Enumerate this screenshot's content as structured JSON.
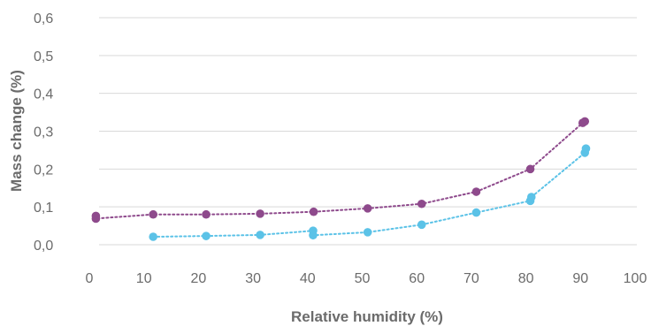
{
  "chart_data": {
    "type": "scatter",
    "title": "",
    "xlabel": "Relative humidity (%)",
    "ylabel": "Mass change (%)",
    "xlim": [
      0,
      100
    ],
    "ylim": [
      0,
      0.6
    ],
    "x_ticks": [
      "0",
      "10",
      "20",
      "30",
      "40",
      "50",
      "60",
      "70",
      "80",
      "90",
      "100"
    ],
    "y_ticks": [
      "0,0",
      "0,1",
      "0,2",
      "0,3",
      "0,4",
      "0,5",
      "0,6"
    ],
    "grid": "horizontal",
    "series": [
      {
        "color": "#8e4a8c",
        "line_style": "dotted",
        "points": [
          [
            1.2,
            0.076
          ],
          [
            1.2,
            0.069
          ],
          [
            11.7,
            0.08
          ],
          [
            21.4,
            0.08
          ],
          [
            31.3,
            0.082
          ],
          [
            41.1,
            0.087
          ],
          [
            51.0,
            0.096
          ],
          [
            60.9,
            0.108
          ],
          [
            70.9,
            0.14
          ],
          [
            80.8,
            0.2
          ],
          [
            90.4,
            0.322
          ],
          [
            90.8,
            0.326
          ]
        ]
      },
      {
        "color": "#5bc2e7",
        "line_style": "dotted",
        "points": [
          [
            11.7,
            0.021
          ],
          [
            21.4,
            0.023
          ],
          [
            31.3,
            0.026
          ],
          [
            41.0,
            0.037
          ],
          [
            41.0,
            0.025
          ],
          [
            51.0,
            0.033
          ],
          [
            60.9,
            0.053
          ],
          [
            70.9,
            0.085
          ],
          [
            80.8,
            0.116
          ],
          [
            81.0,
            0.126
          ],
          [
            90.8,
            0.243
          ],
          [
            91.0,
            0.254
          ]
        ]
      }
    ]
  }
}
